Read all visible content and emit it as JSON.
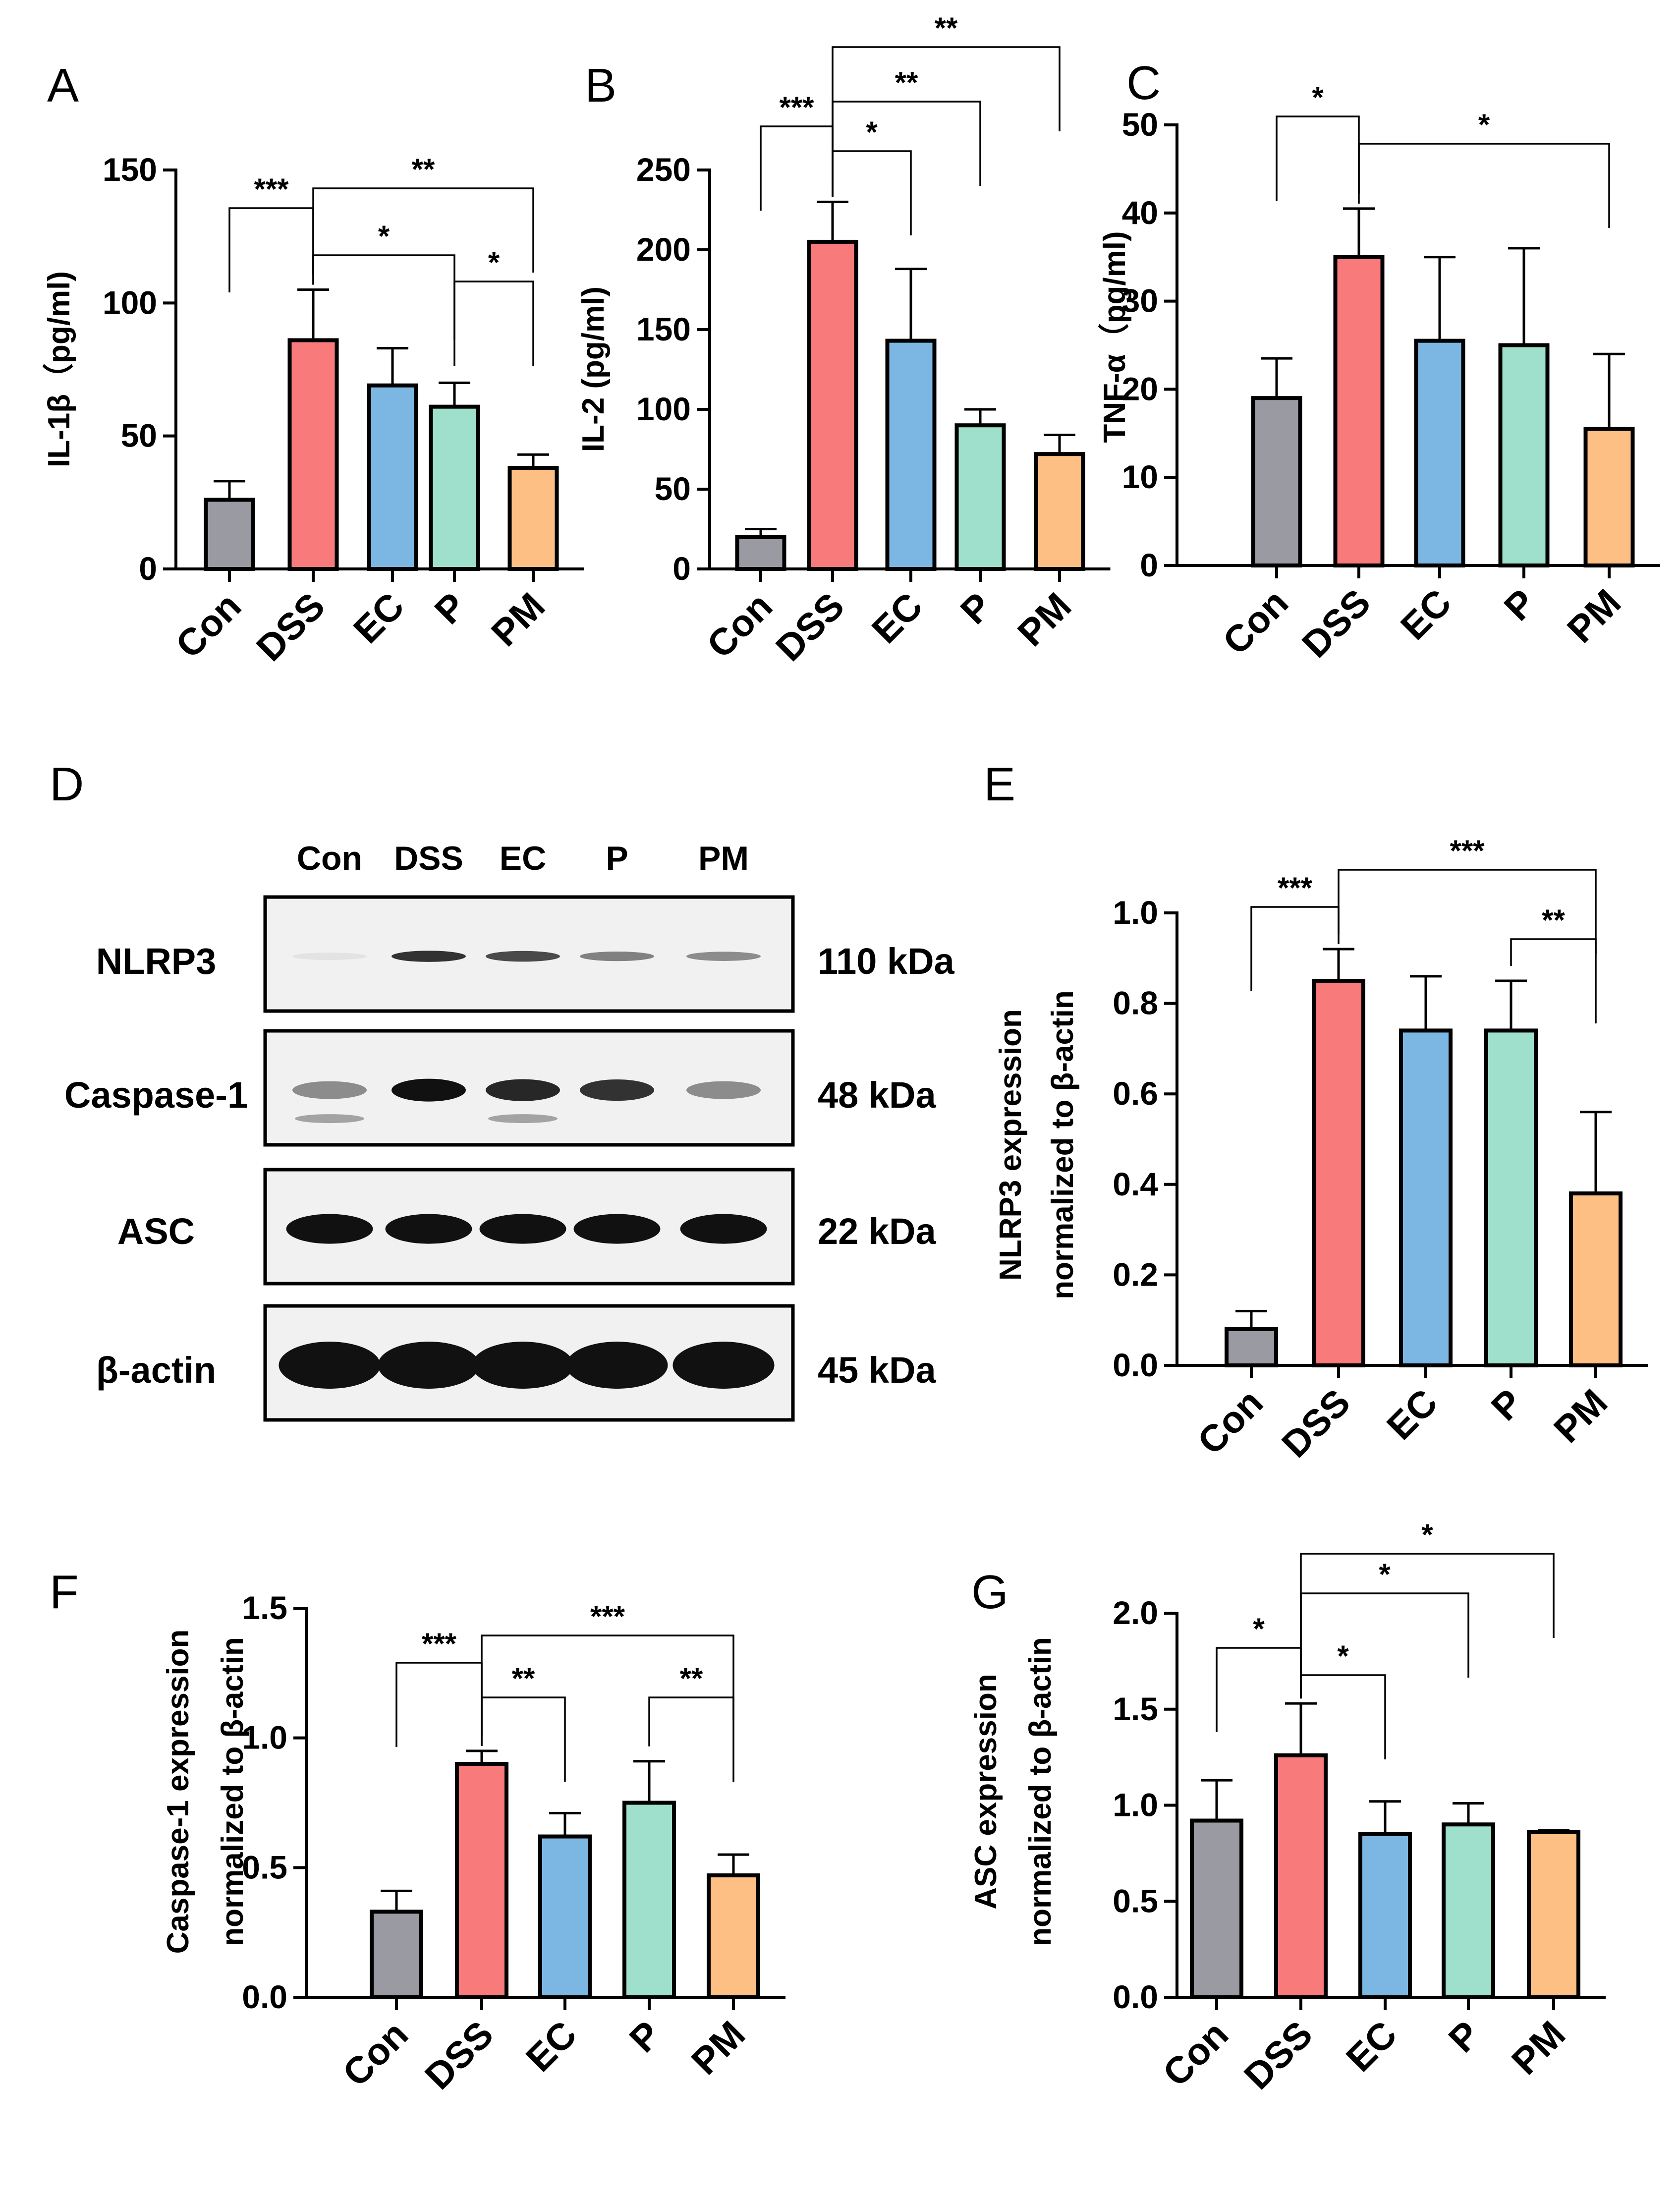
{
  "colors": {
    "Con": "#9a9aa2",
    "DSS": "#f97a7b",
    "EC": "#7cb7e4",
    "P": "#9fe0cc",
    "PM": "#fdbf83",
    "outline": "#000000"
  },
  "chart_data": [
    {
      "id": "A",
      "letter": "A",
      "type": "bar",
      "ylabel": "IL-1β（pg/ml)",
      "categories": [
        "Con",
        "DSS",
        "EC",
        "P",
        "PM"
      ],
      "values": [
        26,
        86,
        69,
        61,
        38
      ],
      "errors": [
        7,
        19,
        14,
        9,
        5
      ],
      "ylim": [
        0,
        150
      ],
      "yticks": [
        0,
        50,
        100,
        150
      ],
      "significance": [
        {
          "from": "Con",
          "to": "DSS",
          "label": "***"
        },
        {
          "from": "DSS",
          "to": "P",
          "label": "*"
        },
        {
          "from": "DSS",
          "to": "PM",
          "label": "**"
        },
        {
          "from": "P",
          "to": "PM",
          "label": "*"
        }
      ]
    },
    {
      "id": "B",
      "letter": "B",
      "type": "bar",
      "ylabel": "IL-2 (pg/ml)",
      "categories": [
        "Con",
        "DSS",
        "EC",
        "P",
        "PM"
      ],
      "values": [
        20,
        205,
        143,
        90,
        72
      ],
      "errors": [
        5,
        25,
        45,
        10,
        12
      ],
      "ylim": [
        0,
        250
      ],
      "yticks": [
        0,
        50,
        100,
        150,
        200,
        250
      ],
      "significance": [
        {
          "from": "Con",
          "to": "DSS",
          "label": "***"
        },
        {
          "from": "DSS",
          "to": "EC",
          "label": "*"
        },
        {
          "from": "DSS",
          "to": "P",
          "label": "**"
        },
        {
          "from": "DSS",
          "to": "PM",
          "label": "**"
        }
      ]
    },
    {
      "id": "C",
      "letter": "C",
      "type": "bar",
      "ylabel": "TNF-α（pg/ml)",
      "categories": [
        "Con",
        "DSS",
        "EC",
        "P",
        "PM"
      ],
      "values": [
        19,
        35,
        25.5,
        25,
        15.5
      ],
      "errors": [
        4.5,
        5.5,
        9.5,
        11,
        8.5
      ],
      "ylim": [
        0,
        50
      ],
      "yticks": [
        0,
        10,
        20,
        30,
        40,
        50
      ],
      "significance": [
        {
          "from": "Con",
          "to": "DSS",
          "label": "*"
        },
        {
          "from": "DSS",
          "to": "PM",
          "label": "*"
        }
      ]
    },
    {
      "id": "E",
      "letter": "E",
      "type": "bar",
      "ylabel": "NLRP3 expression",
      "ylabel2": "normalized to β-actin",
      "categories": [
        "Con",
        "DSS",
        "EC",
        "P",
        "PM"
      ],
      "values": [
        0.08,
        0.85,
        0.74,
        0.74,
        0.38
      ],
      "errors": [
        0.04,
        0.07,
        0.12,
        0.11,
        0.18
      ],
      "ylim": [
        0,
        1.0
      ],
      "yticks": [
        0.0,
        0.2,
        0.4,
        0.6,
        0.8,
        1.0
      ],
      "significance": [
        {
          "from": "Con",
          "to": "DSS",
          "label": "***"
        },
        {
          "from": "DSS",
          "to": "PM",
          "label": "***"
        },
        {
          "from": "P",
          "to": "PM",
          "label": "**"
        }
      ]
    },
    {
      "id": "F",
      "letter": "F",
      "type": "bar",
      "ylabel": "Caspase-1 expression",
      "ylabel2": "normalized to β-actin",
      "categories": [
        "Con",
        "DSS",
        "EC",
        "P",
        "PM"
      ],
      "values": [
        0.33,
        0.9,
        0.62,
        0.75,
        0.47
      ],
      "errors": [
        0.08,
        0.05,
        0.09,
        0.16,
        0.08
      ],
      "ylim": [
        0,
        1.5
      ],
      "yticks": [
        0.0,
        0.5,
        1.0,
        1.5
      ],
      "significance": [
        {
          "from": "Con",
          "to": "DSS",
          "label": "***"
        },
        {
          "from": "DSS",
          "to": "EC",
          "label": "**"
        },
        {
          "from": "DSS",
          "to": "PM",
          "label": "***"
        },
        {
          "from": "P",
          "to": "PM",
          "label": "**"
        }
      ]
    },
    {
      "id": "G",
      "letter": "G",
      "type": "bar",
      "ylabel": "ASC expression",
      "ylabel2": "normalized to β-actin",
      "categories": [
        "Con",
        "DSS",
        "EC",
        "P",
        "PM"
      ],
      "values": [
        0.92,
        1.26,
        0.85,
        0.9,
        0.86
      ],
      "errors": [
        0.21,
        0.27,
        0.17,
        0.11,
        0.01
      ],
      "ylim": [
        0,
        2.0
      ],
      "yticks": [
        0.0,
        0.5,
        1.0,
        1.5,
        2.0
      ],
      "significance": [
        {
          "from": "Con",
          "to": "DSS",
          "label": "*"
        },
        {
          "from": "DSS",
          "to": "EC",
          "label": "*"
        },
        {
          "from": "DSS",
          "to": "P",
          "label": "*"
        },
        {
          "from": "DSS",
          "to": "PM",
          "label": "*"
        }
      ]
    }
  ],
  "western_blot": {
    "letter": "D",
    "lanes": [
      "Con",
      "DSS",
      "EC",
      "P",
      "PM"
    ],
    "rows": [
      {
        "protein": "NLRP3",
        "size": "110 kDa",
        "intensity": [
          0.05,
          0.85,
          0.75,
          0.5,
          0.45
        ]
      },
      {
        "protein": "Caspase-1",
        "size": "48 kDa",
        "intensity": [
          0.45,
          1.0,
          0.9,
          0.85,
          0.45
        ]
      },
      {
        "protein": "ASC",
        "size": "22 kDa",
        "intensity": [
          1.0,
          1.0,
          1.0,
          1.0,
          1.0
        ]
      },
      {
        "protein": "β-actin",
        "size": "45 kDa",
        "intensity": [
          1.0,
          1.0,
          1.0,
          1.0,
          1.0
        ]
      }
    ]
  }
}
